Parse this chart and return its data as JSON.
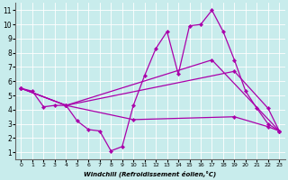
{
  "xlabel": "Windchill (Refroidissement éolien,°C)",
  "xlim": [
    -0.5,
    23.5
  ],
  "ylim": [
    0.5,
    11.5
  ],
  "xticks": [
    0,
    1,
    2,
    3,
    4,
    5,
    6,
    7,
    8,
    9,
    10,
    11,
    12,
    13,
    14,
    15,
    16,
    17,
    18,
    19,
    20,
    21,
    22,
    23
  ],
  "yticks": [
    1,
    2,
    3,
    4,
    5,
    6,
    7,
    8,
    9,
    10,
    11
  ],
  "bg_color": "#c8ecec",
  "line_color": "#aa00aa",
  "lines": [
    {
      "x": [
        0,
        1,
        2,
        3,
        4,
        5,
        6,
        7,
        8,
        9,
        10,
        11,
        12,
        13,
        14,
        15,
        16,
        17,
        18,
        19,
        20,
        21,
        22,
        23
      ],
      "y": [
        5.5,
        5.3,
        4.2,
        4.3,
        4.3,
        3.2,
        2.6,
        2.5,
        1.1,
        1.4,
        4.3,
        6.4,
        8.3,
        9.5,
        6.5,
        9.9,
        10.0,
        11.0,
        9.5,
        7.5,
        5.3,
        4.1,
        3.0,
        2.5
      ]
    },
    {
      "x": [
        0,
        4,
        17,
        23
      ],
      "y": [
        5.5,
        4.3,
        7.5,
        2.5
      ]
    },
    {
      "x": [
        0,
        4,
        19,
        22,
        23
      ],
      "y": [
        5.5,
        4.3,
        6.7,
        4.1,
        2.5
      ]
    },
    {
      "x": [
        0,
        4,
        10,
        19,
        22,
        23
      ],
      "y": [
        5.5,
        4.3,
        3.3,
        3.5,
        2.8,
        2.5
      ]
    }
  ]
}
